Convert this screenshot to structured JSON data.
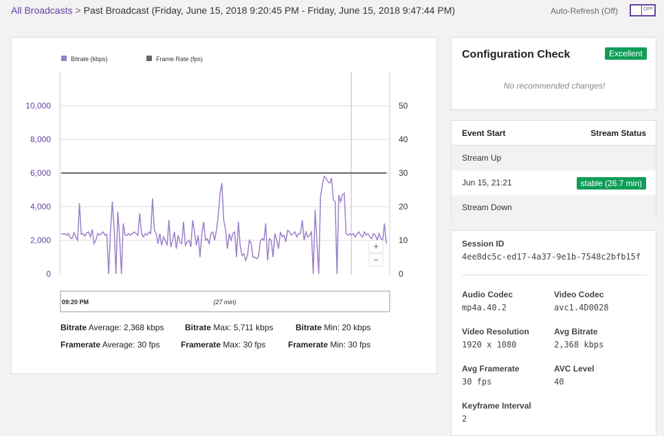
{
  "breadcrumb": {
    "root": "All Broadcasts",
    "separator": ">",
    "current": "Past Broadcast (Friday, June 15, 2018 9:20:45 PM - Friday, June 15, 2018 9:47:44 PM)"
  },
  "auto_refresh": {
    "label": "Auto-Refresh (Off)",
    "toggle_text": "OFF",
    "on": false
  },
  "chart_data": {
    "type": "line",
    "series": [
      {
        "name": "Bitrate (kbps)",
        "axis": "left",
        "color": "#9b7fcb",
        "values": [
          2400,
          2350,
          2400,
          2300,
          2400,
          2150,
          2100,
          2450,
          2200,
          2000,
          4200,
          2350,
          2400,
          2250,
          2450,
          2500,
          2200,
          2650,
          1800,
          2000,
          2400,
          2300,
          2400,
          2500,
          2300,
          2350,
          0,
          2500,
          4300,
          2700,
          0,
          3700,
          2200,
          0,
          3000,
          2300,
          2300,
          2400,
          2300,
          2400,
          2500,
          2400,
          2300,
          3600,
          2400,
          2200,
          2400,
          2300,
          2500,
          2400,
          4500,
          2600,
          2400,
          1800,
          2400,
          1700,
          2200,
          2000,
          1700,
          3200,
          1600,
          2000,
          2500,
          1500,
          2300,
          1900,
          1800,
          3100,
          1700,
          1900,
          2000,
          1600,
          3200,
          2500,
          1700,
          2300,
          1000,
          2400,
          3100,
          2000,
          2100,
          1800,
          2400,
          2500,
          2000,
          2600,
          3500,
          4800,
          5400,
          3200,
          2600,
          1500,
          2400,
          2000,
          2400,
          2500,
          1000,
          3100,
          1700,
          1100,
          1200,
          800,
          1100,
          2000,
          1800,
          1000,
          1000,
          900,
          1000,
          1900,
          2100,
          2000,
          3000,
          800,
          2100,
          2000,
          1000,
          2400,
          2000,
          1500,
          2500,
          2200,
          2300,
          1900,
          2600,
          2500,
          2300,
          2400,
          2500,
          2200,
          2400,
          2400,
          3200,
          2000,
          2500,
          2200,
          2300,
          2500,
          0,
          3800,
          2000,
          0,
          4600,
          5300,
          5800,
          5700,
          5500,
          5400,
          5700,
          4400,
          4300,
          0,
          4700,
          4300,
          4700,
          4800,
          2400,
          2300,
          2400,
          2300,
          2400,
          2200,
          2400,
          2500,
          2300,
          2200,
          2500,
          2300,
          2400,
          2200,
          2100,
          2400,
          2300,
          2000,
          2400,
          2100,
          2000,
          3000,
          1800
        ]
      },
      {
        "name": "Frame Rate (fps)",
        "axis": "right",
        "color": "#666666",
        "values": [
          30,
          30
        ]
      }
    ],
    "y_left": {
      "min": 0,
      "max": 10000,
      "ticks": [
        "0",
        "2,000",
        "4,000",
        "6,000",
        "8,000",
        "10,000"
      ]
    },
    "y_right": {
      "min": 0,
      "max": 50,
      "ticks": [
        "0",
        "10",
        "20",
        "30",
        "40",
        "50"
      ]
    },
    "grid": true,
    "legend_position": "top-left",
    "x_start_label": "09:20 PM",
    "x_duration_label": "(27 min)",
    "zoom_in": "+",
    "zoom_out": "−"
  },
  "stats": {
    "bitrate_word": "Bitrate",
    "framerate_word": "Framerate",
    "bitrate_average": "Average: 2,368 kbps",
    "bitrate_max": "Max: 5,711 kbps",
    "bitrate_min": "Min: 20 kbps",
    "framerate_average": "Average: 30 fps",
    "framerate_max": "Max: 30 fps",
    "framerate_min": "Min: 30 fps"
  },
  "config_check": {
    "title": "Configuration Check",
    "badge": "Excellent",
    "message": "No recommended changes!"
  },
  "events": {
    "headers": {
      "event_start": "Event Start",
      "stream_status": "Stream Status"
    },
    "rows": [
      {
        "label": "Stream Up"
      },
      {
        "label": "Jun 15, 21:21",
        "status": "stable (26.7 min)"
      },
      {
        "label": "Stream Down"
      }
    ]
  },
  "session": {
    "session_id_label": "Session ID",
    "session_id": "4ee8dc5c-ed17-4a37-9e1b-7548c2bfb15f",
    "audio_codec_label": "Audio Codec",
    "audio_codec": "mp4a.40.2",
    "video_codec_label": "Video Codec",
    "video_codec": "avc1.4D0028",
    "video_resolution_label": "Video Resolution",
    "video_resolution": "1920 x 1080",
    "avg_bitrate_label": "Avg Bitrate",
    "avg_bitrate": "2,368 kbps",
    "avg_framerate_label": "Avg Framerate",
    "avg_framerate": "30 fps",
    "avc_level_label": "AVC Level",
    "avc_level": "40",
    "keyframe_interval_label": "Keyframe Interval",
    "keyframe_interval": "2"
  },
  "colors": {
    "accent": "#6441a4",
    "success": "#0f9d58",
    "bitrate_line": "#9b7fcb",
    "framerate_line": "#666666"
  }
}
